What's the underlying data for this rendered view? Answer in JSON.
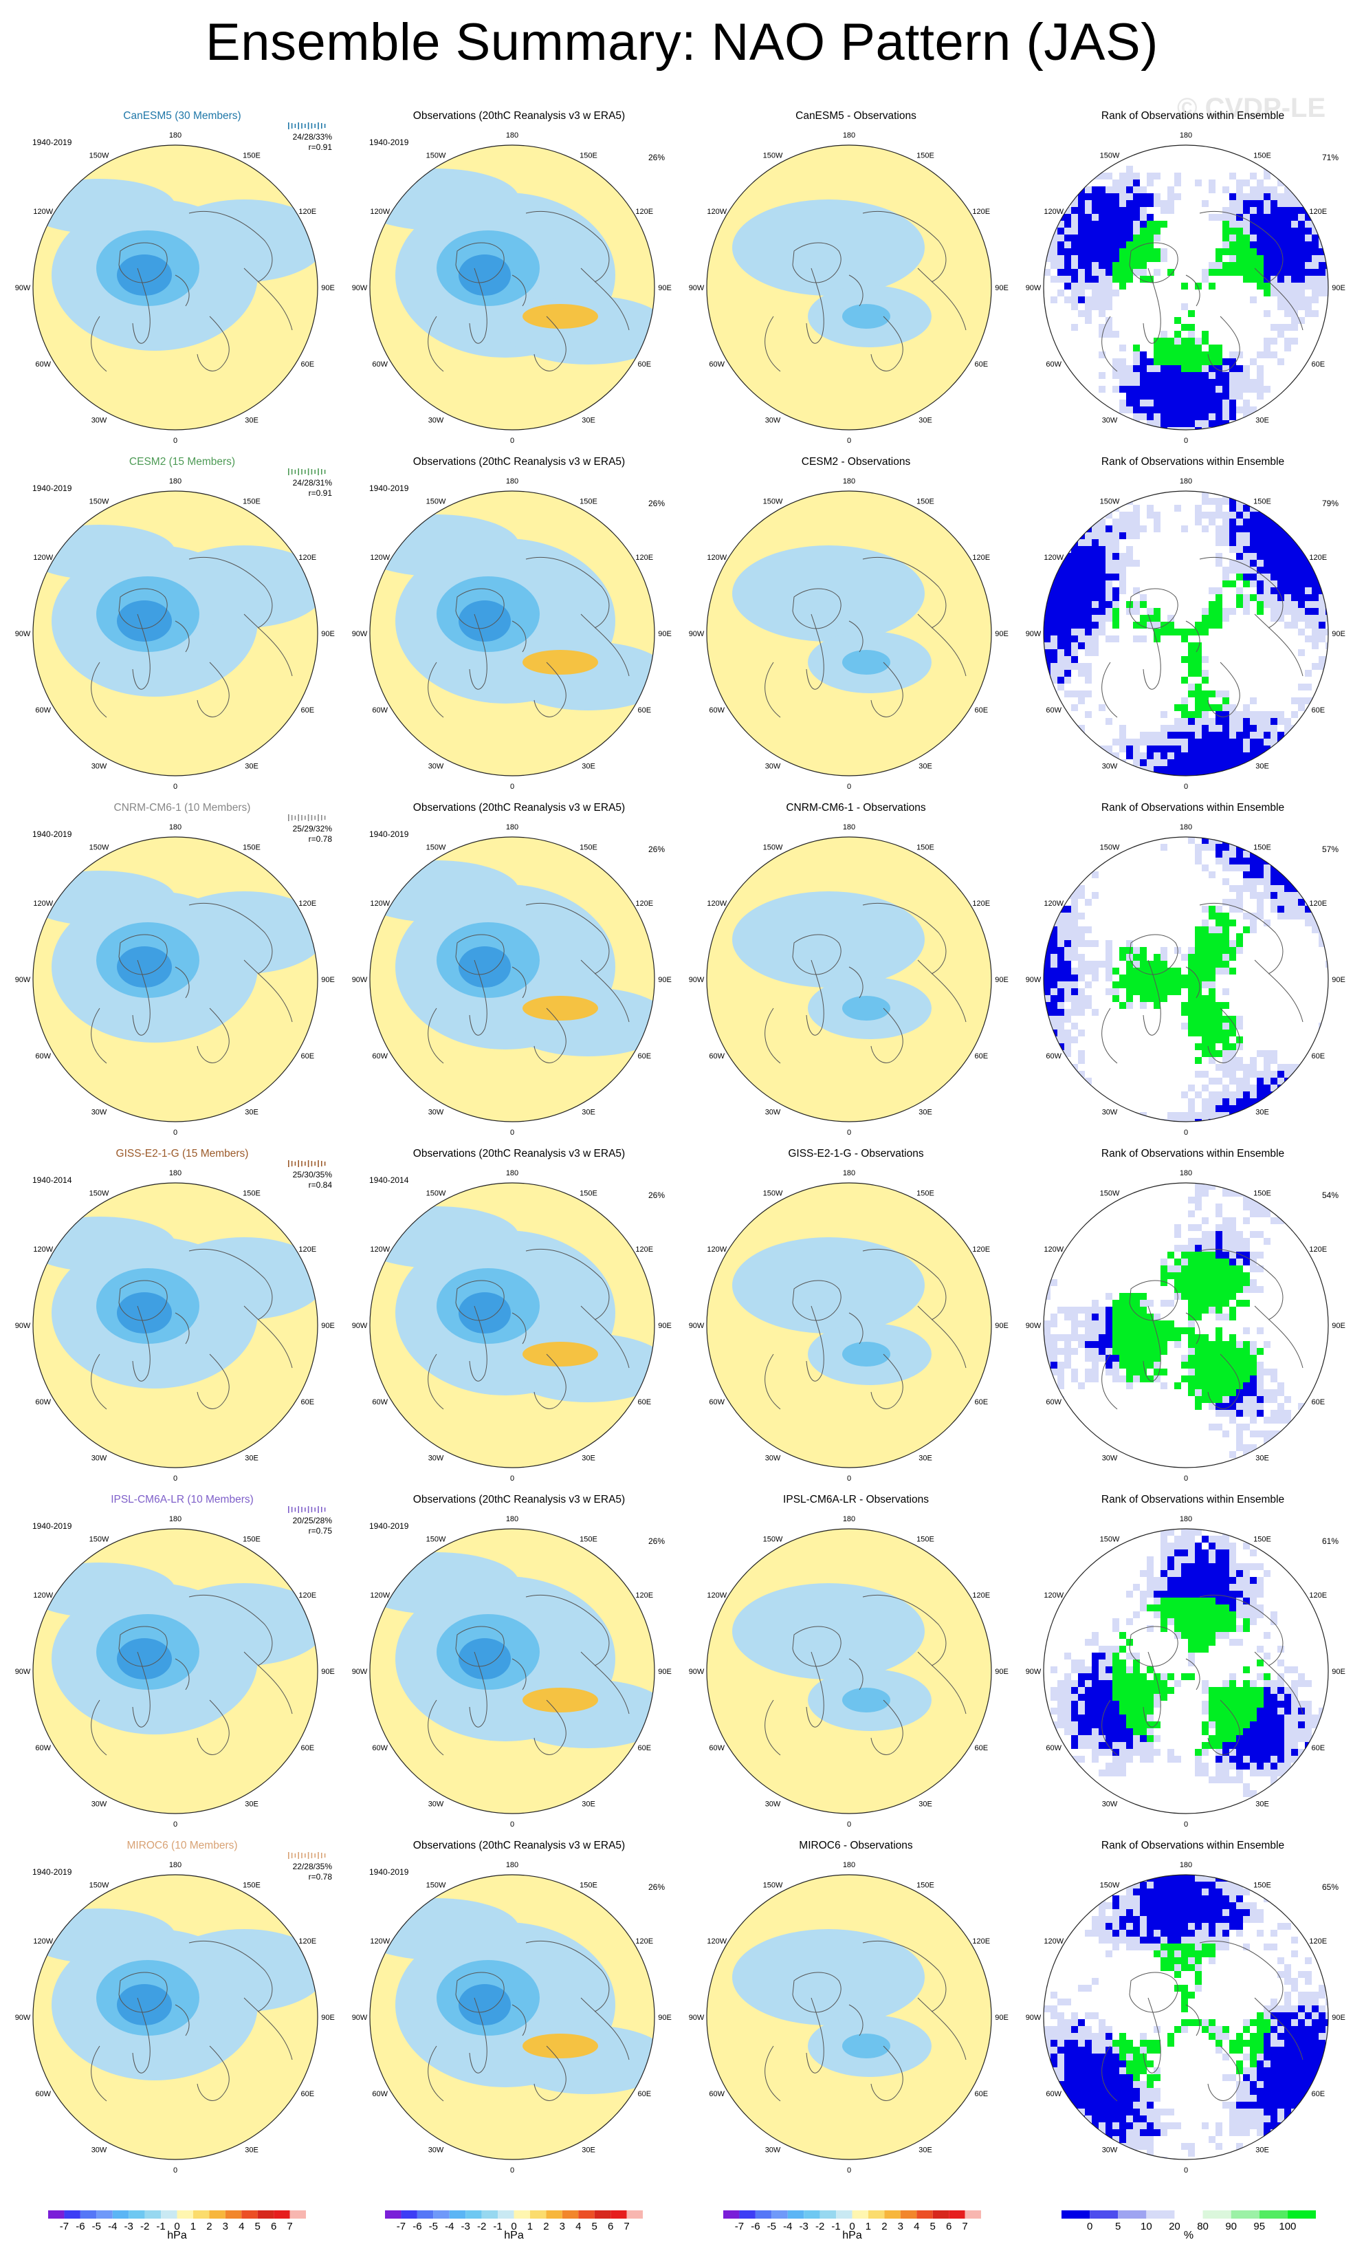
{
  "title": "Ensemble Summary: NAO Pattern (JAS)",
  "watermark": "© CVDP-LE",
  "colors": {
    "neg_light": "#b3dcf2",
    "neg_mid": "#6ec3ee",
    "neg_dark": "#3f9fe2",
    "pos_light": "#fff3a3",
    "pos_mid": "#f5c242",
    "rank_low": "#0000e6",
    "rank_mid": "#d6dbf7",
    "rank_high": "#00ee22",
    "coast": "#555555"
  },
  "longitude_labels": [
    "180",
    "150E",
    "120E",
    "90E",
    "60E",
    "30E",
    "0",
    "30W",
    "60W",
    "90W",
    "120W",
    "150W"
  ],
  "rows": [
    {
      "model": "CanESM5 (30 Members)",
      "model_color": "#1f77a8",
      "years": "1940-2019",
      "stats": "24/28/33%",
      "r": "r=0.91",
      "obs_years": "1940-2019",
      "obs_pct": "26%",
      "diff_title": "CanESM5 - Observations",
      "rank_pct": "71%"
    },
    {
      "model": "CESM2 (15 Members)",
      "model_color": "#4d9a55",
      "years": "1940-2019",
      "stats": "24/28/31%",
      "r": "r=0.91",
      "obs_years": "1940-2019",
      "obs_pct": "26%",
      "diff_title": "CESM2 - Observations",
      "rank_pct": "79%"
    },
    {
      "model": "CNRM-CM6-1 (10 Members)",
      "model_color": "#888888",
      "years": "1940-2019",
      "stats": "25/29/32%",
      "r": "r=0.78",
      "obs_years": "1940-2019",
      "obs_pct": "26%",
      "diff_title": "CNRM-CM6-1 - Observations",
      "rank_pct": "57%"
    },
    {
      "model": "GISS-E2-1-G (15 Members)",
      "model_color": "#9b5a2a",
      "years": "1940-2014",
      "stats": "25/30/35%",
      "r": "r=0.84",
      "obs_years": "1940-2014",
      "obs_pct": "26%",
      "diff_title": "GISS-E2-1-G - Observations",
      "rank_pct": "54%"
    },
    {
      "model": "IPSL-CM6A-LR (10 Members)",
      "model_color": "#7e5fc9",
      "years": "1940-2019",
      "stats": "20/25/28%",
      "r": "r=0.75",
      "obs_years": "1940-2019",
      "obs_pct": "26%",
      "diff_title": "IPSL-CM6A-LR - Observations",
      "rank_pct": "61%"
    },
    {
      "model": "MIROC6 (10 Members)",
      "model_color": "#d8a274",
      "years": "1940-2019",
      "stats": "22/28/35%",
      "r": "r=0.78",
      "obs_years": "1940-2019",
      "obs_pct": "26%",
      "diff_title": "MIROC6 - Observations",
      "rank_pct": "65%"
    }
  ],
  "obs_title": "Observations (20thC Reanalysis v3 w ERA5)",
  "rank_title": "Rank of Observations within Ensemble",
  "colorbar_hpa": {
    "labels": [
      "-7",
      "-6",
      "-5",
      "-4",
      "-3",
      "-2",
      "-1",
      "0",
      "1",
      "2",
      "3",
      "4",
      "5",
      "6",
      "7"
    ],
    "unit": "hPa",
    "colors": [
      "#7a1fd8",
      "#3d3df5",
      "#5577f7",
      "#6f99f9",
      "#5bb5f5",
      "#6ec8f2",
      "#97d8f0",
      "#c9e9f3",
      "#fff6b0",
      "#fbdc6d",
      "#f7b63c",
      "#f2862c",
      "#ec4f25",
      "#d7281d",
      "#e61e1e",
      "#f8b6b0"
    ]
  },
  "colorbar_rank": {
    "labels": [
      "0",
      "5",
      "10",
      "20",
      "80",
      "90",
      "95",
      "100"
    ],
    "unit": "%",
    "colors": [
      "#0000e6",
      "#4d4dee",
      "#9ea4f1",
      "#d6dbf7",
      "#ffffff",
      "#dbf7dc",
      "#9cf1a6",
      "#52ec62",
      "#00ee22"
    ]
  }
}
